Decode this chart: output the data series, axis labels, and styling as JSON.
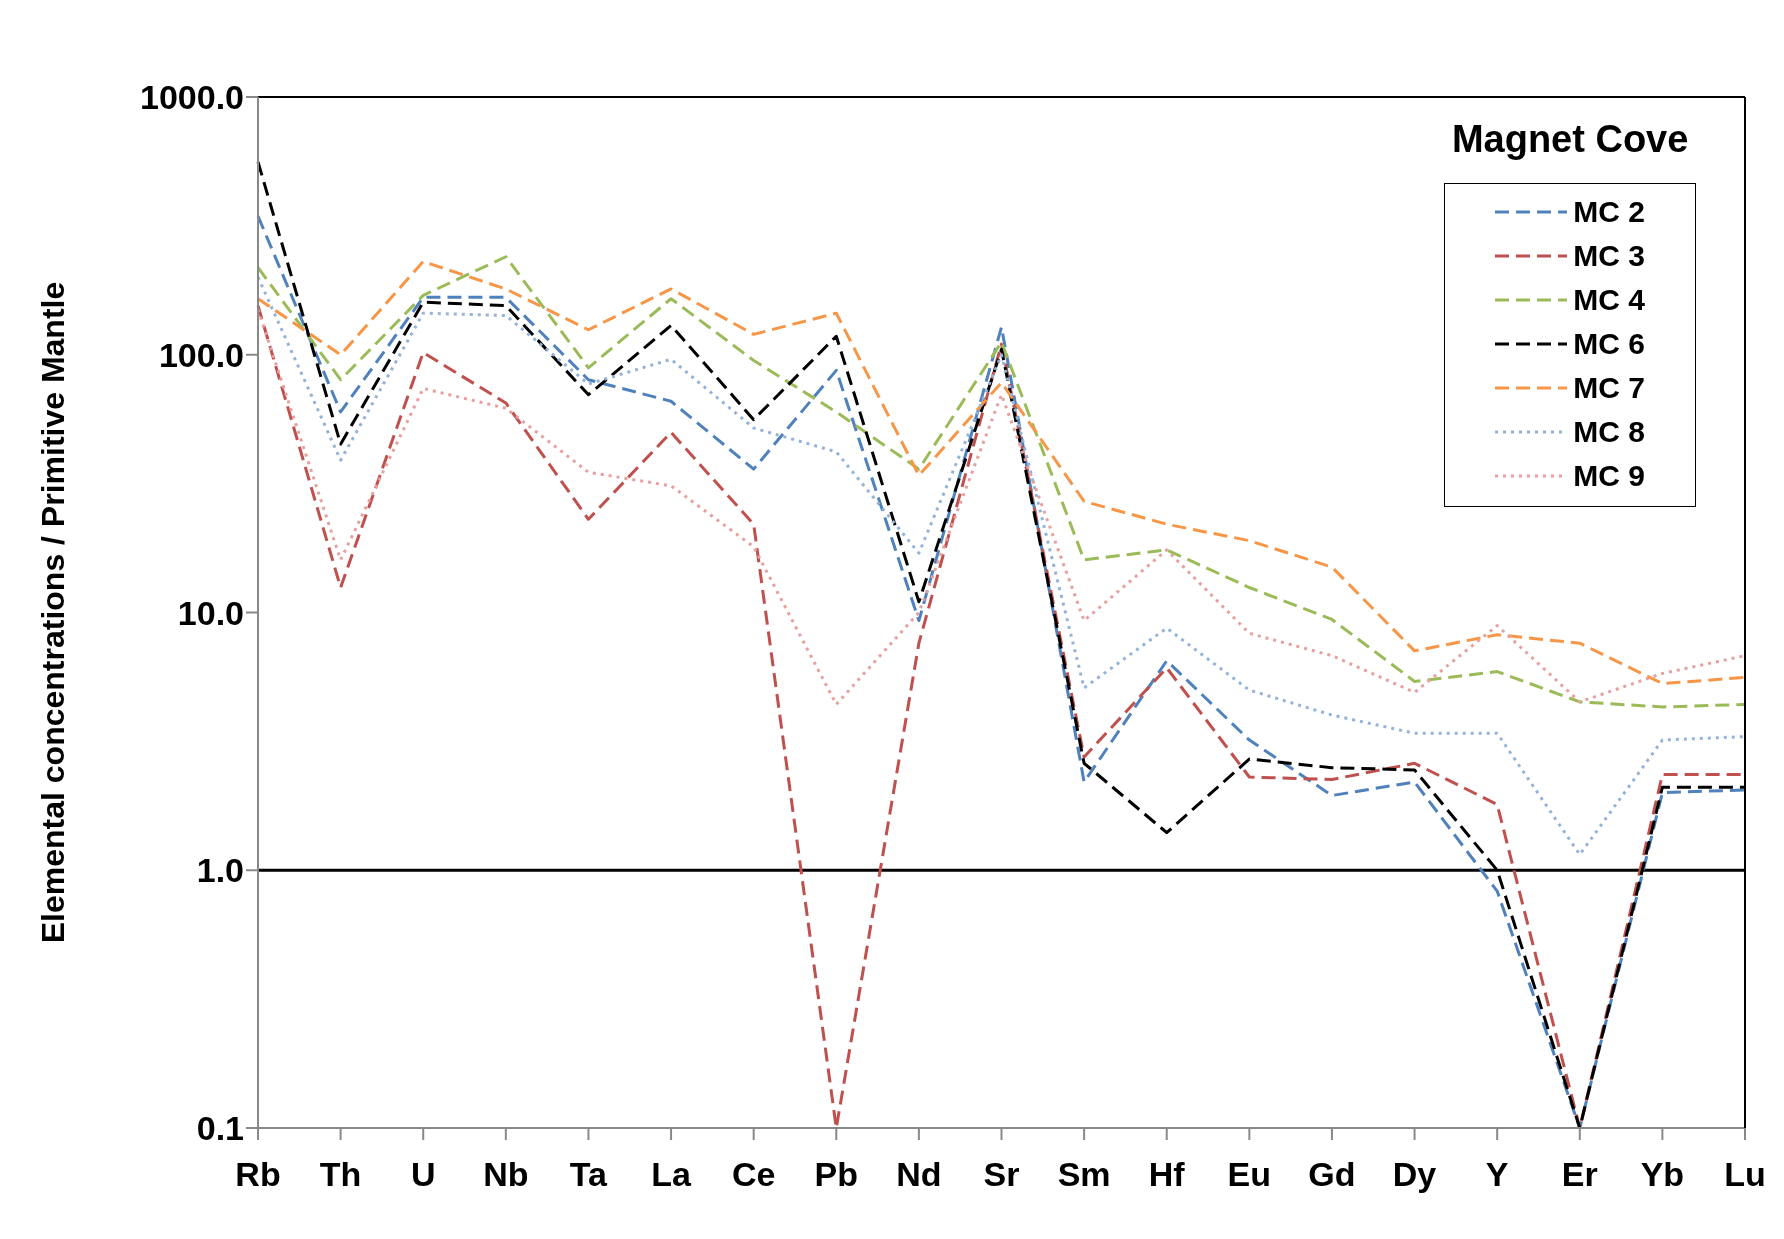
{
  "chart_data": {
    "type": "line",
    "ylabel": "Elemental concentrations / Primitive Mantle",
    "legend_title": "Magnet Cove",
    "categories": [
      "Rb",
      "Th",
      "U",
      "Nb",
      "Ta",
      "La",
      "Ce",
      "Pb",
      "Nd",
      "Sr",
      "Sm",
      "Hf",
      "Eu",
      "Gd",
      "Dy",
      "Y",
      "Er",
      "Yb",
      "Lu"
    ],
    "series": [
      {
        "name": "MC 2",
        "color": "#4f81bd",
        "line_style": "dashed",
        "values": [
          345,
          60,
          167,
          167,
          80,
          66,
          36,
          87,
          9.3,
          128,
          2.2,
          6.5,
          3.2,
          1.95,
          2.2,
          0.83,
          0.1,
          2.0,
          2.05
        ]
      },
      {
        "name": "MC 3",
        "color": "#c0504d",
        "line_style": "dashed",
        "values": [
          155,
          12.5,
          102,
          65,
          23,
          50,
          22,
          0.1,
          7.6,
          110,
          2.75,
          6.1,
          2.3,
          2.25,
          2.6,
          1.8,
          0.1,
          2.35,
          2.35
        ]
      },
      {
        "name": "MC 4",
        "color": "#9bbb59",
        "line_style": "dashed",
        "values": [
          218,
          80,
          170,
          240,
          89,
          165,
          95,
          60,
          36,
          112,
          16,
          17.5,
          12.5,
          9.4,
          5.4,
          5.9,
          4.5,
          4.3,
          4.4
        ]
      },
      {
        "name": "MC 6",
        "color": "#000000",
        "line_style": "dashed",
        "values": [
          560,
          45,
          160,
          155,
          70,
          130,
          56,
          118,
          11,
          105,
          2.6,
          1.4,
          2.7,
          2.5,
          2.45,
          1.0,
          0.1,
          2.1,
          2.1
        ]
      },
      {
        "name": "MC 7",
        "color": "#f79646",
        "line_style": "dashed",
        "values": [
          165,
          100,
          230,
          180,
          125,
          180,
          120,
          145,
          34,
          78,
          27,
          22,
          19,
          15,
          7.1,
          8.2,
          7.6,
          5.3,
          5.6
        ]
      },
      {
        "name": "MC 8",
        "color": "#95b3d7",
        "line_style": "dotted",
        "values": [
          200,
          39,
          145,
          142,
          77,
          96,
          52,
          42,
          17,
          100,
          5.1,
          8.7,
          5.0,
          4.0,
          3.4,
          3.4,
          1.15,
          3.2,
          3.3
        ]
      },
      {
        "name": "MC 9",
        "color": "#e6a0a0",
        "line_style": "dotted",
        "values": [
          150,
          16,
          74,
          62,
          35,
          31,
          18,
          4.4,
          10,
          70,
          9.3,
          17.5,
          8.3,
          6.8,
          4.9,
          8.9,
          4.5,
          5.8,
          6.8
        ]
      }
    ],
    "log": "y",
    "ylim": [
      0.1,
      1000
    ],
    "yticks": [
      0.1,
      {
        "value": 1,
        "label": "1.0"
      },
      {
        "value": 10,
        "label": "10.0"
      },
      {
        "value": 100,
        "label": "100.0"
      },
      {
        "value": 1000,
        "label": "1000.0"
      }
    ],
    "ref_lines": [
      {
        "axis": "y",
        "value": 1,
        "color": "#000000",
        "line_style": "solid"
      }
    ],
    "legend": "top right",
    "grid": false
  }
}
